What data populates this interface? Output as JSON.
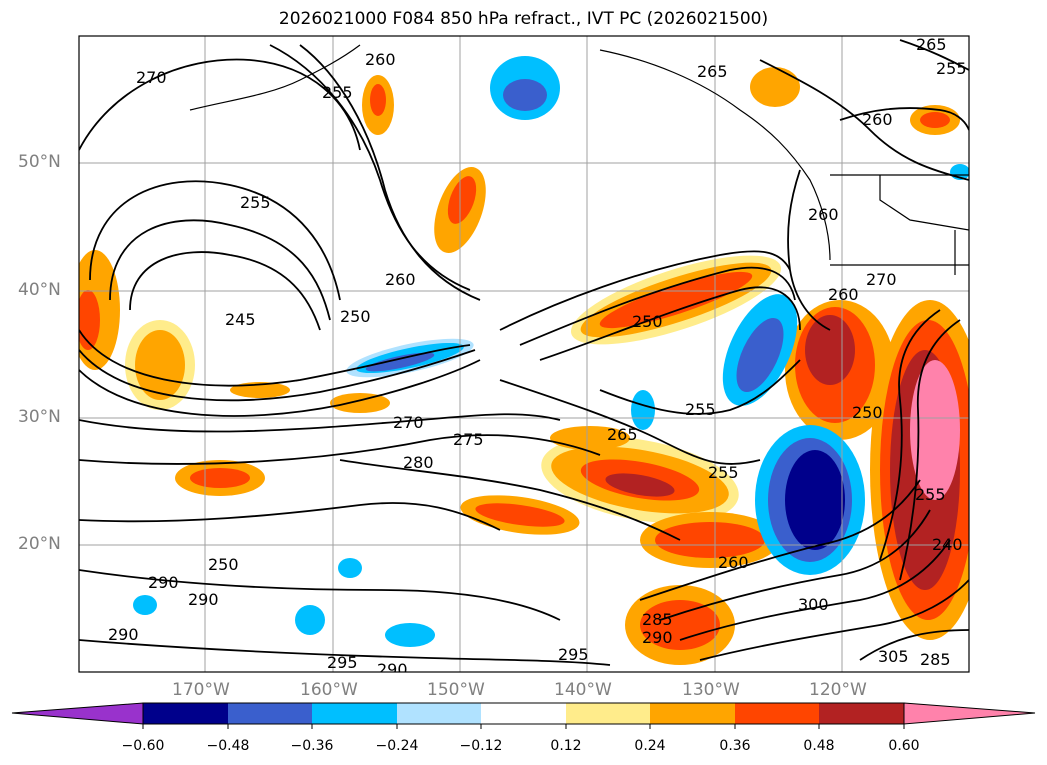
{
  "title": "2026021000 F084 850 hPa refract., IVT PC (2026021500)",
  "lat_labels": [
    "50°N",
    "40°N",
    "30°N",
    "20°N"
  ],
  "lon_labels": [
    "170°W",
    "160°W",
    "150°W",
    "140°W",
    "130°W",
    "120°W"
  ],
  "contour_labels": [
    "270",
    "255",
    "255",
    "260",
    "245",
    "250",
    "260",
    "265",
    "250",
    "255",
    "265",
    "260",
    "250",
    "270",
    "275",
    "280",
    "255",
    "260",
    "265",
    "290",
    "290",
    "290",
    "285",
    "290",
    "295",
    "290",
    "295",
    "300",
    "250",
    "255",
    "260",
    "270",
    "255",
    "260",
    "240",
    "305",
    "285"
  ],
  "colorbar": {
    "ticks": [
      "−0.60",
      "−0.48",
      "−0.36",
      "−0.24",
      "−0.12",
      "0.12",
      "0.24",
      "0.36",
      "0.48",
      "0.60"
    ],
    "colors": [
      "#9932cc",
      "#00008b",
      "#3a5fcd",
      "#00bfff",
      "#b0e2ff",
      "#ffffff",
      "#ffec8b",
      "#ffa500",
      "#ff4500",
      "#b22222",
      "#ff82ab"
    ]
  }
}
